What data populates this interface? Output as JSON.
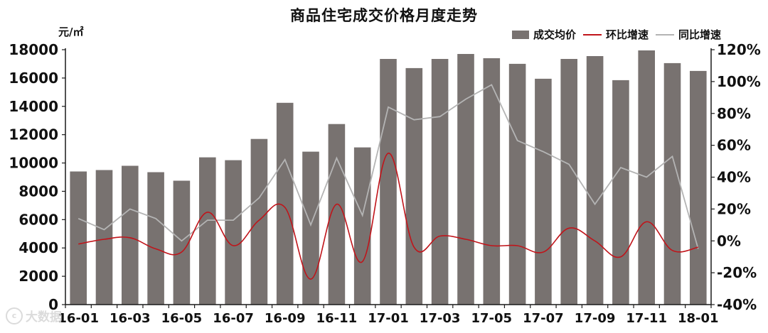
{
  "title": "商品住宅成交价格月度走势",
  "unit": "元/㎡",
  "watermark": "大数据",
  "colors": {
    "bar": "#787270",
    "mom": "#c0141a",
    "yoy": "#b4b4b4",
    "axis": "#1a1a1a"
  },
  "chart_data": {
    "type": "bar",
    "categories": [
      "16-01",
      "16-02",
      "16-03",
      "16-04",
      "16-05",
      "16-06",
      "16-07",
      "16-08",
      "16-09",
      "16-10",
      "16-11",
      "16-12",
      "17-01",
      "17-02",
      "17-03",
      "17-04",
      "17-05",
      "17-06",
      "17-07",
      "17-08",
      "17-09",
      "17-10",
      "17-11",
      "17-12",
      "18-01"
    ],
    "tick_labels": [
      "16-01",
      "16-03",
      "16-05",
      "16-07",
      "16-09",
      "16-11",
      "17-01",
      "17-03",
      "17-05",
      "17-07",
      "17-09",
      "17-11",
      "18-01"
    ],
    "series": [
      {
        "name": "成交均价",
        "type": "bar",
        "axis": "left",
        "values": [
          9400,
          9500,
          9800,
          9350,
          8750,
          10400,
          10200,
          11700,
          14250,
          10800,
          12750,
          11100,
          17350,
          16700,
          17350,
          17700,
          17400,
          17000,
          15950,
          17350,
          17550,
          15850,
          17950,
          17050,
          16500
        ]
      },
      {
        "name": "环比增速",
        "type": "line",
        "axis": "right",
        "values": [
          -2,
          1,
          2,
          -5,
          -7,
          18,
          -3,
          13,
          21,
          -24,
          23,
          -13,
          55,
          -4,
          3,
          1,
          -3,
          -3,
          -7,
          8,
          0,
          -10,
          12,
          -6,
          -4
        ]
      },
      {
        "name": "同比增速",
        "type": "line",
        "axis": "right",
        "values": [
          14,
          7,
          20,
          14,
          0,
          13,
          13,
          27,
          51,
          10,
          52,
          16,
          84,
          76,
          78,
          89,
          98,
          63,
          56,
          48,
          23,
          46,
          40,
          53,
          -5
        ]
      }
    ],
    "left_axis": {
      "min": 0,
      "max": 18000,
      "step": 2000,
      "ticks": [
        "0",
        "2000",
        "4000",
        "6000",
        "8000",
        "10000",
        "12000",
        "14000",
        "16000",
        "18000"
      ]
    },
    "right_axis": {
      "min": -40,
      "max": 120,
      "step": 20,
      "ticks": [
        "-40%",
        "-20%",
        "0%",
        "20%",
        "40%",
        "60%",
        "80%",
        "100%",
        "120%"
      ]
    },
    "grid": false,
    "legend": "top-right"
  }
}
